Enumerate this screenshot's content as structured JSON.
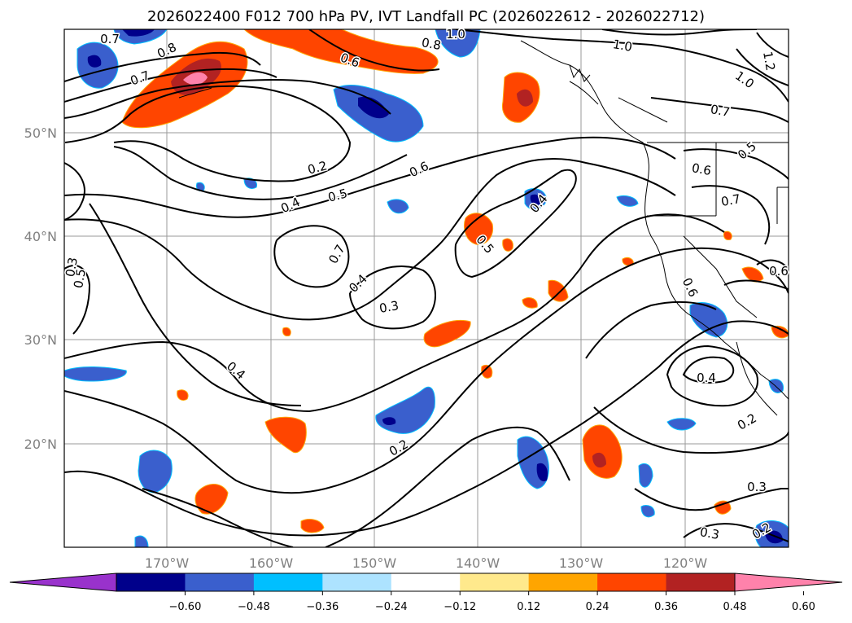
{
  "title": "2026022400 F012 700 hPa PV, IVT Landfall PC (2026022612 - 2026022712)",
  "lon_labels": [
    "170°W",
    "160°W",
    "150°W",
    "140°W",
    "130°W",
    "120°W"
  ],
  "lat_labels": [
    "50°N",
    "40°N",
    "30°N",
    "20°N"
  ],
  "contour_labels": [
    "0.7",
    "0.8",
    "0.7",
    "1.0",
    "0.6",
    "0.8",
    "1.0",
    "1.0",
    "1.2",
    "0.7",
    "0.5",
    "0.2",
    "0.4",
    "0.5",
    "0.6",
    "0.6",
    "0.7",
    "0.4",
    "0.5",
    "0.7",
    "0.4",
    "0.3",
    "0.6",
    "0.5",
    "0.3",
    "0.6",
    "0.4",
    "0.4",
    "0.2",
    "0.2",
    "0.3",
    "0.3",
    "0.2"
  ],
  "colorbar": {
    "colors": [
      "#9932CC",
      "#00008B",
      "#3A5FCD",
      "#00BFFF",
      "#ADE3FF",
      "#FFFFFF",
      "#FFE98C",
      "#FFA500",
      "#FF4500",
      "#B22222",
      "#FF82AB"
    ],
    "ticks": [
      "−0.60",
      "−0.48",
      "−0.36",
      "−0.24",
      "−0.12",
      "0.12",
      "0.24",
      "0.36",
      "0.48",
      "0.60"
    ]
  }
}
